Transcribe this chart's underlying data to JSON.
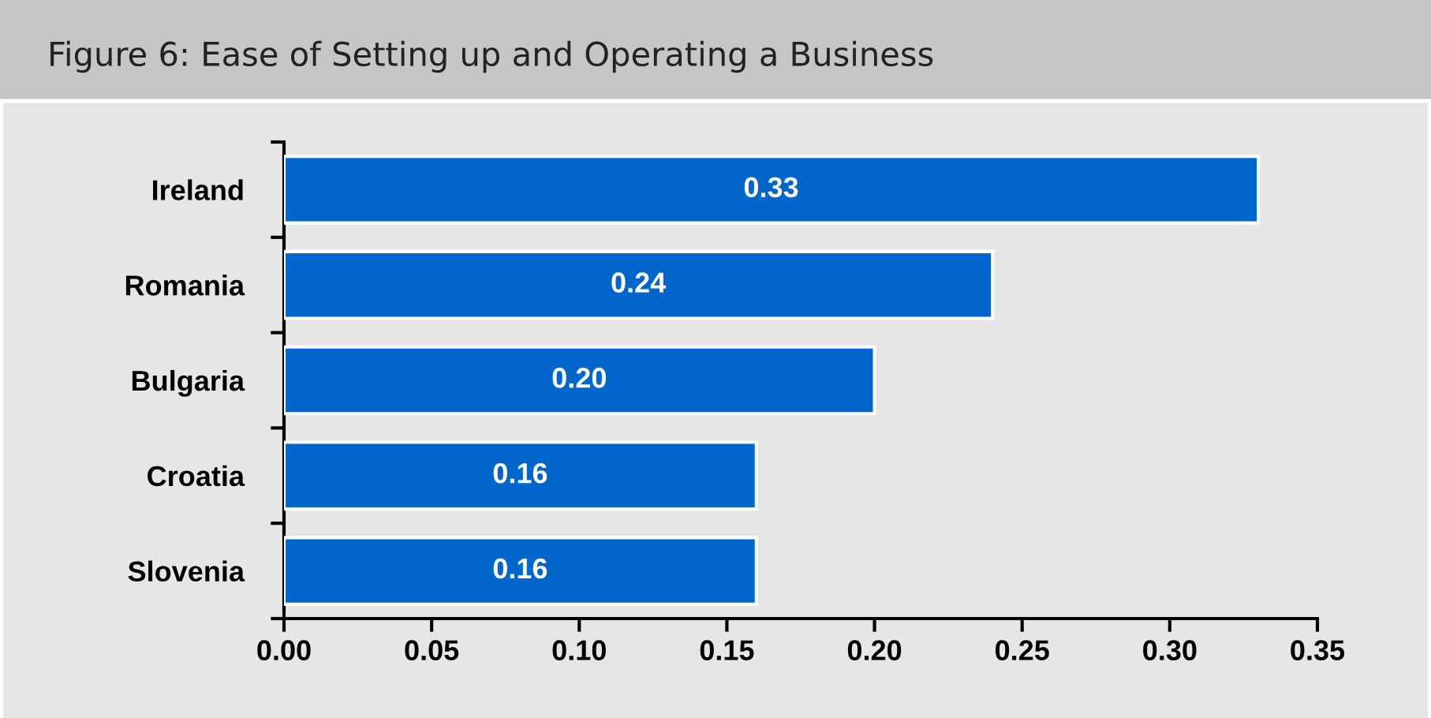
{
  "chart_data": {
    "type": "bar",
    "title": "Figure 6: Ease of Setting up and Operating a Business",
    "orientation": "horizontal",
    "categories": [
      "Ireland",
      "Romania",
      "Bulgaria",
      "Croatia",
      "Slovenia"
    ],
    "values": [
      0.33,
      0.24,
      0.2,
      0.16,
      0.16
    ],
    "value_labels": [
      "0.33",
      "0.24",
      "0.20",
      "0.16",
      "0.16"
    ],
    "color": "#0066cc",
    "xlim": [
      0,
      0.35
    ],
    "xticks": [
      {
        "value": 0,
        "label": "0.00"
      },
      0.05,
      {
        "value": 0.1,
        "label": "0.10"
      },
      0.15,
      {
        "value": 0.2,
        "label": "0.20"
      },
      0.25,
      {
        "value": 0.3,
        "label": "0.30"
      },
      0.35
    ],
    "grid": false,
    "legend": false
  }
}
